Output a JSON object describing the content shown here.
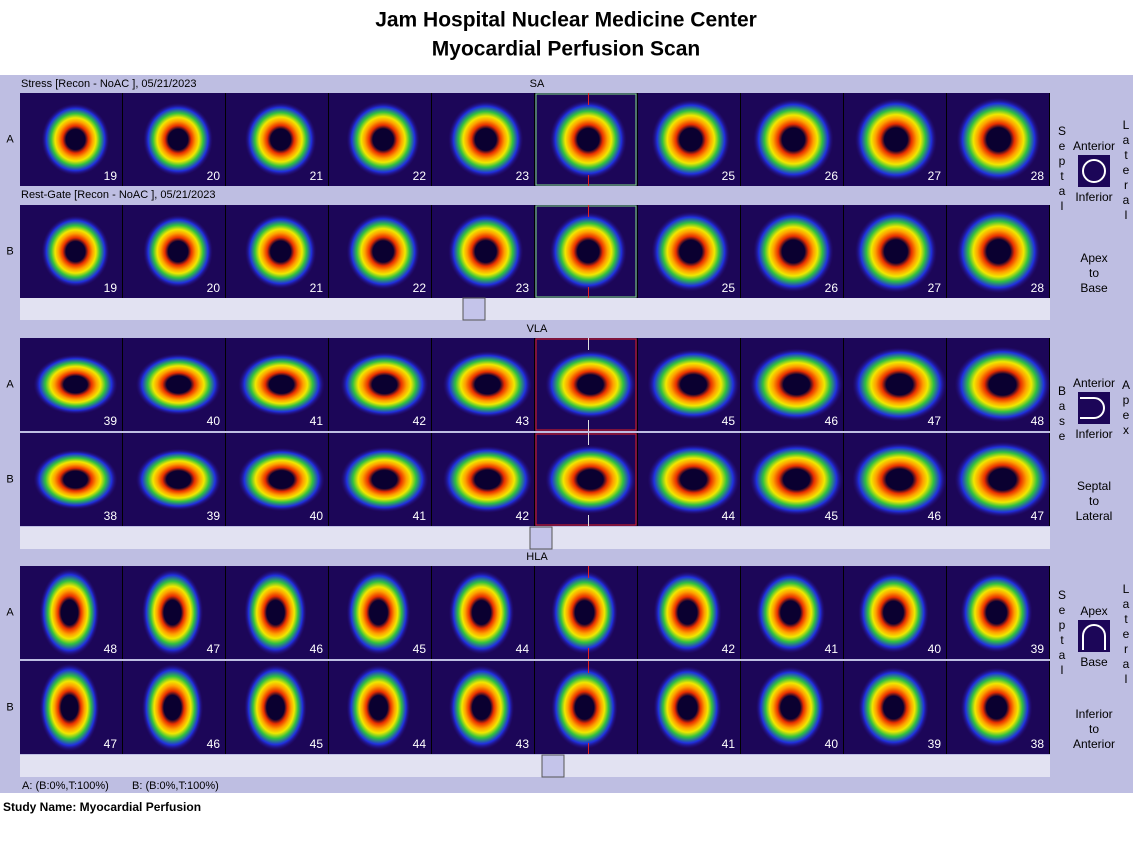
{
  "header": {
    "title_line1": "Jam Hospital Nuclear Medicine Center",
    "title_line2": "Myocardial Perfusion Scan"
  },
  "panels": [
    {
      "label": "SA",
      "rows": [
        {
          "row_label": "A",
          "caption": "Stress [Recon - NoAC ], 05/21/2023",
          "slices": [
            19,
            20,
            21,
            22,
            23,
            null,
            25,
            26,
            27,
            28
          ]
        },
        {
          "row_label": "B",
          "caption": "Rest-Gate [Recon - NoAC ], 05/21/2023",
          "slices": [
            19,
            20,
            21,
            22,
            23,
            null,
            25,
            26,
            27,
            28
          ]
        }
      ],
      "orientation": {
        "left": "Septal",
        "right": "Lateral",
        "top": "Anterior",
        "bottom": "Inferior",
        "direction": [
          "Apex",
          "to",
          "Base"
        ]
      }
    },
    {
      "label": "VLA",
      "rows": [
        {
          "row_label": "A",
          "slices": [
            39,
            40,
            41,
            42,
            43,
            null,
            45,
            46,
            47,
            48
          ]
        },
        {
          "row_label": "B",
          "slices": [
            38,
            39,
            40,
            41,
            42,
            null,
            44,
            45,
            46,
            47
          ]
        }
      ],
      "orientation": {
        "left": "Base",
        "right": "Apex",
        "top": "Anterior",
        "bottom": "Inferior",
        "direction": [
          "Septal",
          "to",
          "Lateral"
        ]
      }
    },
    {
      "label": "HLA",
      "rows": [
        {
          "row_label": "A",
          "slices": [
            48,
            47,
            46,
            45,
            44,
            null,
            42,
            41,
            40,
            39
          ]
        },
        {
          "row_label": "B",
          "slices": [
            47,
            46,
            45,
            44,
            43,
            null,
            41,
            40,
            39,
            38
          ]
        }
      ],
      "orientation": {
        "left": "Septal",
        "right": "Lateral",
        "top": "Apex",
        "bottom": "Base",
        "direction": [
          "Inferior",
          "to",
          "Anterior"
        ]
      }
    }
  ],
  "footer": {
    "scale_a": "A: (B:0%,T:100%)",
    "scale_b": "B: (B:0%,T:100%)"
  },
  "study_name": "Study Name: Myocardial Perfusion"
}
